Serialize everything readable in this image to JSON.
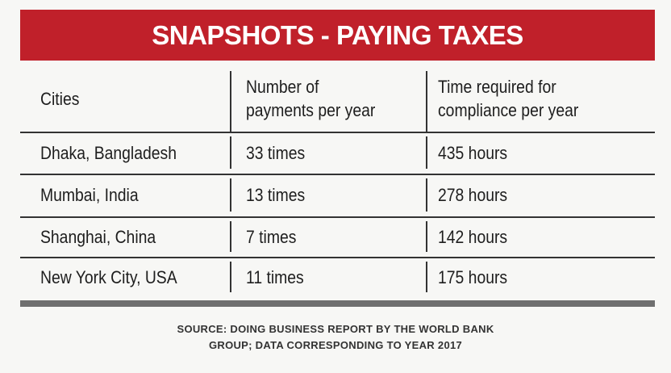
{
  "header": {
    "title": "SNAPSHOTS - PAYING TAXES"
  },
  "table": {
    "headers": [
      [
        "Cities"
      ],
      [
        "Number of",
        "payments per year"
      ],
      [
        "Time required for",
        "compliance per year"
      ]
    ],
    "rows": [
      [
        "Dhaka, Bangladesh",
        "33 times",
        "435 hours"
      ],
      [
        "Mumbai, India",
        "13 times",
        "278 hours"
      ],
      [
        "Shanghai, China",
        "7 times",
        "142 hours"
      ],
      [
        "New York City, USA",
        "11 times",
        "175 hours"
      ]
    ]
  },
  "source": {
    "lines": [
      "SOURCE:  DOING BUSINESS REPORT BY THE WORLD BANK",
      "GROUP; DATA CORRESPONDING TO YEAR 2017"
    ]
  }
}
